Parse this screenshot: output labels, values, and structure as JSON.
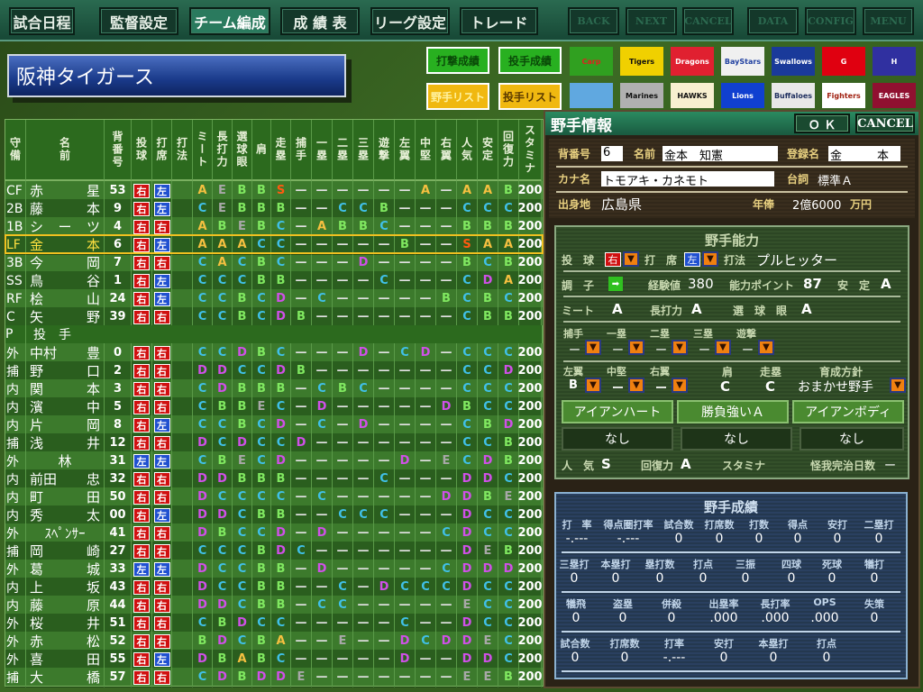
{
  "topnav": {
    "items": [
      "試合日程",
      "監督設定",
      "チーム編成",
      "成 績 表",
      "リーグ設定",
      "トレード"
    ],
    "active": "チーム編成",
    "right": [
      "BACK",
      "NEXT",
      "CANCEL",
      "DATA",
      "CONFIG",
      "MENU"
    ]
  },
  "team_name": "阪神タイガース",
  "side_buttons": {
    "batting_stats": "打撃成績",
    "pitching_stats": "投手成績",
    "fielder_list": "野手リスト",
    "pitcher_list": "投手リスト"
  },
  "logos": [
    {
      "label": "Carp",
      "bg": "#30a020",
      "fg": "#e02020"
    },
    {
      "label": "Tigers",
      "bg": "#f0d000",
      "fg": "#101010"
    },
    {
      "label": "Dragons",
      "bg": "#e02030",
      "fg": "#ffffff"
    },
    {
      "label": "BayStars",
      "bg": "#f0f0f0",
      "fg": "#2040a0"
    },
    {
      "label": "Swallows",
      "bg": "#1a3a9a",
      "fg": "#ffffff"
    },
    {
      "label": "G",
      "bg": "#e00010",
      "fg": "#ffffff"
    },
    {
      "label": "H",
      "bg": "#3030a0",
      "fg": "#ffffff"
    },
    {
      "label": "",
      "bg": "#60a8e0",
      "fg": "#ffffff"
    },
    {
      "label": "Marines",
      "bg": "#b0b0b0",
      "fg": "#101010"
    },
    {
      "label": "HAWKS",
      "bg": "#f8f0d0",
      "fg": "#101010"
    },
    {
      "label": "Lions",
      "bg": "#1040d0",
      "fg": "#ffffff"
    },
    {
      "label": "Buffaloes",
      "bg": "#e8e8e8",
      "fg": "#203060"
    },
    {
      "label": "Fighters",
      "bg": "#ffffff",
      "fg": "#a02010"
    },
    {
      "label": "EAGLES",
      "bg": "#901030",
      "fg": "#ffffff"
    }
  ],
  "table": {
    "headers": [
      "守備",
      "名前",
      "背番号",
      "投球",
      "打席",
      "打法",
      "ミート",
      "長打力",
      "選球眼",
      "肩",
      "走塁",
      "捕手",
      "一塁",
      "二塁",
      "三塁",
      "遊撃",
      "左翼",
      "中堅",
      "右翼",
      "人気",
      "安定",
      "回復力",
      "スタミナ"
    ],
    "section_pitchers": {
      "pos": "P",
      "label": "投　手"
    },
    "fielders": [
      {
        "pos": "CF",
        "name": [
          "赤",
          "星"
        ],
        "num": "53",
        "throw": "右",
        "bat": "左",
        "form": "",
        "g": [
          "A",
          "E",
          "B",
          "B",
          "S",
          "-",
          "-",
          "-",
          "-",
          "-",
          "-",
          "A",
          "-",
          "A",
          "A",
          "B"
        ],
        "stamina": "200"
      },
      {
        "pos": "2B",
        "name": [
          "藤",
          "本"
        ],
        "num": "9",
        "throw": "右",
        "bat": "左",
        "form": "",
        "g": [
          "C",
          "E",
          "B",
          "B",
          "B",
          "-",
          "-",
          "C",
          "C",
          "B",
          "-",
          "-",
          "-",
          "C",
          "C",
          "C"
        ],
        "stamina": "200"
      },
      {
        "pos": "1B",
        "name": [
          "シ",
          "ー",
          "ツ"
        ],
        "num": "4",
        "throw": "右",
        "bat": "右",
        "form": "",
        "g": [
          "A",
          "B",
          "E",
          "B",
          "C",
          "-",
          "A",
          "B",
          "B",
          "C",
          "-",
          "-",
          "-",
          "B",
          "B",
          "B"
        ],
        "stamina": "200"
      },
      {
        "pos": "LF",
        "name": [
          "金",
          "本"
        ],
        "num": "6",
        "throw": "右",
        "bat": "左",
        "form": "",
        "g": [
          "A",
          "A",
          "A",
          "C",
          "C",
          "-",
          "-",
          "-",
          "-",
          "-",
          "B",
          "-",
          "-",
          "S",
          "A",
          "A"
        ],
        "stamina": "200",
        "selected": true
      },
      {
        "pos": "3B",
        "name": [
          "今",
          "岡"
        ],
        "num": "7",
        "throw": "右",
        "bat": "右",
        "form": "",
        "g": [
          "C",
          "A",
          "C",
          "B",
          "C",
          "-",
          "-",
          "-",
          "D",
          "-",
          "-",
          "-",
          "-",
          "B",
          "C",
          "B"
        ],
        "stamina": "200"
      },
      {
        "pos": "SS",
        "name": [
          "鳥",
          "谷"
        ],
        "num": "1",
        "throw": "右",
        "bat": "左",
        "form": "",
        "g": [
          "C",
          "C",
          "C",
          "B",
          "B",
          "-",
          "-",
          "-",
          "-",
          "C",
          "-",
          "-",
          "-",
          "C",
          "D",
          "A"
        ],
        "stamina": "200"
      },
      {
        "pos": "RF",
        "name": [
          "桧",
          "山"
        ],
        "num": "24",
        "throw": "右",
        "bat": "左",
        "form": "",
        "g": [
          "C",
          "C",
          "B",
          "C",
          "D",
          "-",
          "C",
          "-",
          "-",
          "-",
          "-",
          "-",
          "B",
          "C",
          "B",
          "C"
        ],
        "stamina": "200"
      },
      {
        "pos": "C",
        "name": [
          "矢",
          "野"
        ],
        "num": "39",
        "throw": "右",
        "bat": "右",
        "form": "",
        "g": [
          "C",
          "C",
          "B",
          "C",
          "D",
          "B",
          "-",
          "-",
          "-",
          "-",
          "-",
          "-",
          "-",
          "C",
          "B",
          "B"
        ],
        "stamina": "200"
      }
    ],
    "pitchers": [
      {
        "pos": "外",
        "name": [
          "中村",
          "豊"
        ],
        "num": "0",
        "throw": "右",
        "bat": "右",
        "form": "",
        "g": [
          "C",
          "C",
          "D",
          "B",
          "C",
          "-",
          "-",
          "-",
          "D",
          "-",
          "C",
          "D",
          "-",
          "C",
          "C",
          "C"
        ],
        "stamina": "200"
      },
      {
        "pos": "捕",
        "name": [
          "野",
          "口"
        ],
        "num": "2",
        "throw": "右",
        "bat": "右",
        "form": "",
        "g": [
          "D",
          "D",
          "C",
          "C",
          "D",
          "B",
          "-",
          "-",
          "-",
          "-",
          "-",
          "-",
          "-",
          "C",
          "C",
          "D"
        ],
        "stamina": "200"
      },
      {
        "pos": "内",
        "name": [
          "関",
          "本"
        ],
        "num": "3",
        "throw": "右",
        "bat": "右",
        "form": "",
        "g": [
          "C",
          "D",
          "B",
          "B",
          "B",
          "-",
          "C",
          "B",
          "C",
          "-",
          "-",
          "-",
          "-",
          "C",
          "C",
          "C"
        ],
        "stamina": "200"
      },
      {
        "pos": "内",
        "name": [
          "濱",
          "中"
        ],
        "num": "5",
        "throw": "右",
        "bat": "右",
        "form": "",
        "g": [
          "C",
          "B",
          "B",
          "E",
          "C",
          "-",
          "D",
          "-",
          "-",
          "-",
          "-",
          "-",
          "D",
          "B",
          "C",
          "C"
        ],
        "stamina": "200"
      },
      {
        "pos": "内",
        "name": [
          "片",
          "岡"
        ],
        "num": "8",
        "throw": "右",
        "bat": "左",
        "form": "",
        "g": [
          "C",
          "C",
          "B",
          "C",
          "D",
          "-",
          "C",
          "-",
          "D",
          "-",
          "-",
          "-",
          "-",
          "C",
          "B",
          "D"
        ],
        "stamina": "200"
      },
      {
        "pos": "捕",
        "name": [
          "浅",
          "井"
        ],
        "num": "12",
        "throw": "右",
        "bat": "右",
        "form": "",
        "g": [
          "D",
          "C",
          "D",
          "C",
          "C",
          "D",
          "-",
          "-",
          "-",
          "-",
          "-",
          "-",
          "-",
          "C",
          "C",
          "B"
        ],
        "stamina": "200"
      },
      {
        "pos": "外",
        "name": [
          "林"
        ],
        "num": "31",
        "throw": "左",
        "bat": "左",
        "form": "",
        "g": [
          "C",
          "B",
          "E",
          "C",
          "D",
          "-",
          "-",
          "-",
          "-",
          "-",
          "D",
          "-",
          "E",
          "C",
          "D",
          "B"
        ],
        "stamina": "200"
      },
      {
        "pos": "内",
        "name": [
          "前田",
          "忠"
        ],
        "num": "32",
        "throw": "右",
        "bat": "右",
        "form": "",
        "g": [
          "D",
          "D",
          "B",
          "B",
          "B",
          "-",
          "-",
          "-",
          "-",
          "C",
          "-",
          "-",
          "-",
          "D",
          "D",
          "C"
        ],
        "stamina": "200"
      },
      {
        "pos": "内",
        "name": [
          "町",
          "田"
        ],
        "num": "50",
        "throw": "右",
        "bat": "右",
        "form": "",
        "g": [
          "D",
          "C",
          "C",
          "C",
          "C",
          "-",
          "C",
          "-",
          "-",
          "-",
          "-",
          "-",
          "D",
          "D",
          "B",
          "E"
        ],
        "stamina": "200",
        "line": "o"
      },
      {
        "pos": "内",
        "name": [
          "秀",
          "太"
        ],
        "num": "00",
        "throw": "右",
        "bat": "左",
        "form": "",
        "g": [
          "D",
          "D",
          "C",
          "B",
          "B",
          "-",
          "-",
          "C",
          "C",
          "C",
          "-",
          "-",
          "-",
          "D",
          "C",
          "C"
        ],
        "stamina": "200"
      },
      {
        "pos": "外",
        "name": [
          "ｽﾍﾟﾝｻｰ"
        ],
        "num": "41",
        "throw": "右",
        "bat": "右",
        "form": "",
        "g": [
          "D",
          "B",
          "C",
          "C",
          "D",
          "-",
          "D",
          "-",
          "-",
          "-",
          "-",
          "-",
          "C",
          "D",
          "C",
          "C"
        ],
        "stamina": "200",
        "line": "r"
      },
      {
        "pos": "捕",
        "name": [
          "岡",
          "崎"
        ],
        "num": "27",
        "throw": "右",
        "bat": "右",
        "form": "",
        "g": [
          "C",
          "C",
          "C",
          "B",
          "D",
          "C",
          "-",
          "-",
          "-",
          "-",
          "-",
          "-",
          "-",
          "D",
          "E",
          "B"
        ],
        "stamina": "200"
      },
      {
        "pos": "外",
        "name": [
          "葛",
          "城"
        ],
        "num": "33",
        "throw": "左",
        "bat": "左",
        "form": "",
        "g": [
          "D",
          "C",
          "C",
          "B",
          "B",
          "-",
          "D",
          "-",
          "-",
          "-",
          "-",
          "-",
          "C",
          "D",
          "D",
          "D"
        ],
        "stamina": "200"
      },
      {
        "pos": "内",
        "name": [
          "上",
          "坂"
        ],
        "num": "43",
        "throw": "右",
        "bat": "右",
        "form": "",
        "g": [
          "D",
          "C",
          "C",
          "B",
          "B",
          "-",
          "-",
          "C",
          "-",
          "D",
          "C",
          "C",
          "C",
          "D",
          "C",
          "C"
        ],
        "stamina": "200"
      },
      {
        "pos": "内",
        "name": [
          "藤",
          "原"
        ],
        "num": "44",
        "throw": "右",
        "bat": "右",
        "form": "",
        "g": [
          "D",
          "D",
          "C",
          "B",
          "B",
          "-",
          "C",
          "C",
          "-",
          "-",
          "-",
          "-",
          "-",
          "E",
          "C",
          "C"
        ],
        "stamina": "200"
      },
      {
        "pos": "外",
        "name": [
          "桜",
          "井"
        ],
        "num": "51",
        "throw": "右",
        "bat": "右",
        "form": "",
        "g": [
          "C",
          "B",
          "D",
          "C",
          "C",
          "-",
          "-",
          "-",
          "-",
          "-",
          "C",
          "-",
          "-",
          "D",
          "C",
          "C"
        ],
        "stamina": "200"
      },
      {
        "pos": "外",
        "name": [
          "赤",
          "松"
        ],
        "num": "52",
        "throw": "右",
        "bat": "右",
        "form": "",
        "g": [
          "B",
          "D",
          "C",
          "B",
          "A",
          "-",
          "-",
          "E",
          "-",
          "-",
          "D",
          "C",
          "D",
          "D",
          "E",
          "C"
        ],
        "stamina": "200"
      },
      {
        "pos": "外",
        "name": [
          "喜",
          "田"
        ],
        "num": "55",
        "throw": "右",
        "bat": "左",
        "form": "",
        "g": [
          "D",
          "B",
          "A",
          "B",
          "C",
          "-",
          "-",
          "-",
          "-",
          "-",
          "D",
          "-",
          "-",
          "D",
          "D",
          "C"
        ],
        "stamina": "200"
      },
      {
        "pos": "捕",
        "name": [
          "大",
          "橋"
        ],
        "num": "57",
        "throw": "右",
        "bat": "右",
        "form": "",
        "g": [
          "C",
          "D",
          "B",
          "D",
          "D",
          "E",
          "-",
          "-",
          "-",
          "-",
          "-",
          "-",
          "-",
          "E",
          "E",
          "B"
        ],
        "stamina": "200"
      }
    ]
  },
  "panel": {
    "title": "野手情報",
    "ok": "Ｏ Ｋ",
    "cancel": "CANCEL",
    "labels": {
      "number": "背番号",
      "name": "名前",
      "reg_name": "登録名",
      "kana": "カナ名",
      "line": "台詞",
      "birthplace": "出身地",
      "salary": "年俸",
      "salary_unit": "万円"
    },
    "number": "6",
    "name": "金本　知憲",
    "reg_name": "金　　　本",
    "kana": "トモアキ・カネモト",
    "line": "標準Ａ",
    "birthplace": "広島県",
    "salary": "2億6000",
    "ability": {
      "title": "野手能力",
      "throw_label": "投　球",
      "throw": "右",
      "bat_label": "打　席",
      "bat": "左",
      "form_label": "打法",
      "form": "プルヒッター",
      "condition_label": "調　子",
      "exp_label": "経験値",
      "exp": "380",
      "ap_label": "能力ポイント",
      "ap": "87",
      "stable_label": "安　定",
      "stable": "A",
      "meet_label": "ミート",
      "meet": "A",
      "power_label": "長打力",
      "power": "A",
      "eye_label": "選　球　眼",
      "eye": "A",
      "inf": [
        {
          "label": "捕手",
          "v": "ー"
        },
        {
          "label": "一塁",
          "v": "ー"
        },
        {
          "label": "二塁",
          "v": "ー"
        },
        {
          "label": "三塁",
          "v": "ー"
        },
        {
          "label": "遊撃",
          "v": "ー"
        }
      ],
      "of": [
        {
          "label": "左翼",
          "v": "B"
        },
        {
          "label": "中堅",
          "v": "ー"
        },
        {
          "label": "右翼",
          "v": "ー"
        }
      ],
      "arm_label": "肩",
      "arm": "C",
      "run_label": "走塁",
      "run": "C",
      "policy_label": "育成方針",
      "policy": "おまかせ野手",
      "skills": [
        "アイアンハート",
        "勝負強いＡ",
        "アイアンボディ"
      ],
      "skills2": [
        "なし",
        "なし",
        "なし"
      ],
      "pop_label": "人　気",
      "pop": "S",
      "recover_label": "回復力",
      "recover": "A",
      "stamina_label": "スタミナ",
      "injury_label": "怪我完治日数",
      "injury": "ー"
    },
    "stats": {
      "title": "野手成績",
      "rows": [
        [
          {
            "l": "打　率",
            "v": "-.---"
          },
          {
            "l": "得点圏打率",
            "v": "-.---"
          },
          {
            "l": "試合数",
            "v": "0"
          },
          {
            "l": "打席数",
            "v": "0"
          },
          {
            "l": "打数",
            "v": "0"
          },
          {
            "l": "得点",
            "v": "0"
          },
          {
            "l": "安打",
            "v": "0"
          },
          {
            "l": "二塁打",
            "v": "0"
          }
        ],
        [
          {
            "l": "三塁打",
            "v": "0"
          },
          {
            "l": "本塁打",
            "v": "0"
          },
          {
            "l": "塁打数",
            "v": "0"
          },
          {
            "l": "打点",
            "v": "0"
          },
          {
            "l": "三振",
            "v": "0"
          },
          {
            "l": "四球",
            "v": "0"
          },
          {
            "l": "死球",
            "v": "0"
          },
          {
            "l": "犠打",
            "v": "0"
          }
        ],
        [
          {
            "l": "犠飛",
            "v": "0"
          },
          {
            "l": "盗塁",
            "v": "0"
          },
          {
            "l": "併殺",
            "v": "0"
          },
          {
            "l": "出塁率",
            "v": ".000"
          },
          {
            "l": "長打率",
            "v": ".000"
          },
          {
            "l": "OPS",
            "v": ".000"
          },
          {
            "l": "失策",
            "v": "0"
          }
        ],
        [
          {
            "l": "試合数",
            "v": "0"
          },
          {
            "l": "打席数",
            "v": "0"
          },
          {
            "l": "打率",
            "v": "-.---"
          },
          {
            "l": "安打",
            "v": "0"
          },
          {
            "l": "本塁打",
            "v": "0"
          },
          {
            "l": "打点",
            "v": "0"
          }
        ]
      ]
    }
  }
}
